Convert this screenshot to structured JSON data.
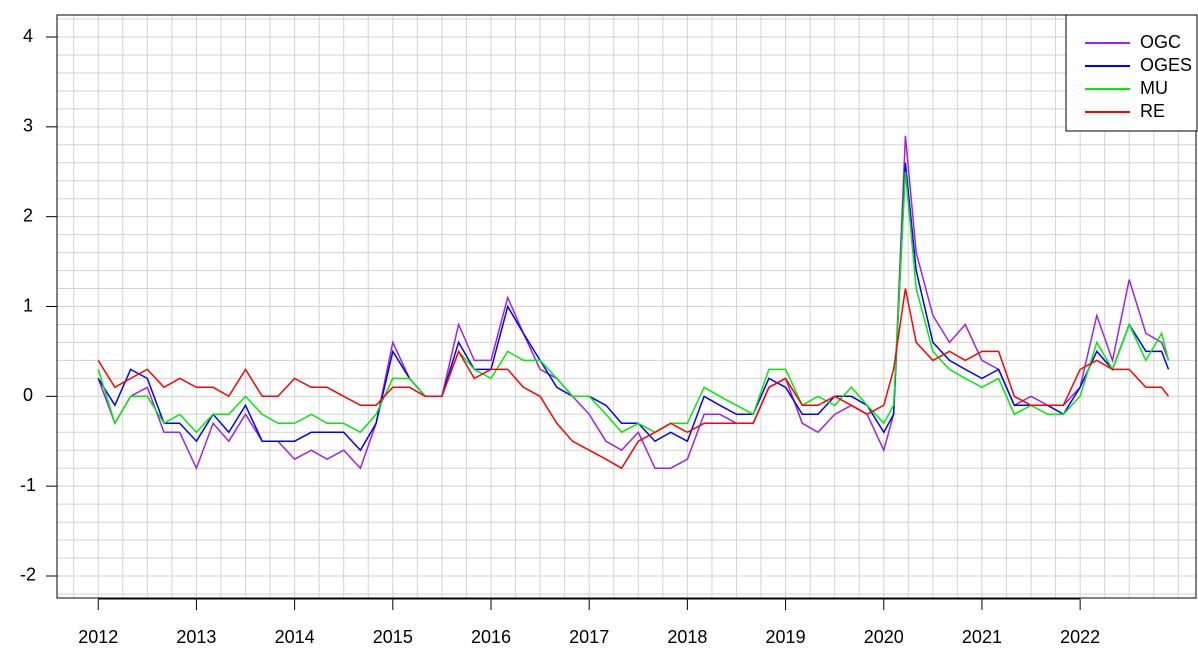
{
  "chart_data": {
    "type": "line",
    "x": [
      2012.0,
      2012.17,
      2012.33,
      2012.5,
      2012.67,
      2012.83,
      2013.0,
      2013.17,
      2013.33,
      2013.5,
      2013.67,
      2013.83,
      2014.0,
      2014.17,
      2014.33,
      2014.5,
      2014.67,
      2014.83,
      2015.0,
      2015.17,
      2015.33,
      2015.5,
      2015.67,
      2015.83,
      2016.0,
      2016.17,
      2016.33,
      2016.5,
      2016.67,
      2016.83,
      2017.0,
      2017.17,
      2017.33,
      2017.5,
      2017.67,
      2017.83,
      2018.0,
      2018.17,
      2018.33,
      2018.5,
      2018.67,
      2018.83,
      2019.0,
      2019.17,
      2019.33,
      2019.5,
      2019.67,
      2019.83,
      2020.0,
      2020.1,
      2020.22,
      2020.33,
      2020.5,
      2020.67,
      2020.83,
      2021.0,
      2021.17,
      2021.33,
      2021.5,
      2021.67,
      2021.83,
      2022.0,
      2022.17,
      2022.33,
      2022.5,
      2022.67,
      2022.83,
      2022.9
    ],
    "series": [
      {
        "name": "OGC",
        "color": "#a020f0",
        "values": [
          0.2,
          -0.3,
          0.0,
          0.1,
          -0.4,
          -0.4,
          -0.8,
          -0.3,
          -0.5,
          -0.2,
          -0.5,
          -0.5,
          -0.7,
          -0.6,
          -0.7,
          -0.6,
          -0.8,
          -0.3,
          0.6,
          0.2,
          0.0,
          0.0,
          0.8,
          0.4,
          0.4,
          1.1,
          0.7,
          0.3,
          0.2,
          0.0,
          -0.2,
          -0.5,
          -0.6,
          -0.4,
          -0.8,
          -0.8,
          -0.7,
          -0.2,
          -0.2,
          -0.3,
          -0.3,
          0.1,
          0.2,
          -0.3,
          -0.4,
          -0.2,
          -0.1,
          -0.2,
          -0.6,
          -0.2,
          2.9,
          1.6,
          0.9,
          0.6,
          0.8,
          0.4,
          0.3,
          -0.1,
          0.0,
          -0.1,
          -0.1,
          0.1,
          0.9,
          0.4,
          1.3,
          0.7,
          0.6,
          0.4
        ]
      },
      {
        "name": "OGES",
        "color": "#0000ff",
        "values": [
          0.2,
          -0.1,
          0.3,
          0.2,
          -0.3,
          -0.3,
          -0.5,
          -0.2,
          -0.4,
          -0.1,
          -0.5,
          -0.5,
          -0.5,
          -0.4,
          -0.4,
          -0.4,
          -0.6,
          -0.3,
          0.5,
          0.2,
          0.0,
          0.0,
          0.6,
          0.3,
          0.3,
          1.0,
          0.7,
          0.4,
          0.1,
          0.0,
          0.0,
          -0.1,
          -0.3,
          -0.3,
          -0.5,
          -0.4,
          -0.5,
          0.0,
          -0.1,
          -0.2,
          -0.2,
          0.2,
          0.1,
          -0.2,
          -0.2,
          0.0,
          0.0,
          -0.1,
          -0.4,
          -0.2,
          2.6,
          1.4,
          0.6,
          0.4,
          0.3,
          0.2,
          0.3,
          -0.1,
          -0.1,
          -0.1,
          -0.2,
          0.1,
          0.5,
          0.3,
          0.8,
          0.5,
          0.5,
          0.3
        ]
      },
      {
        "name": "MU",
        "color": "#00ee00",
        "values": [
          0.3,
          -0.3,
          0.0,
          0.0,
          -0.3,
          -0.2,
          -0.4,
          -0.2,
          -0.2,
          0.0,
          -0.2,
          -0.3,
          -0.3,
          -0.2,
          -0.3,
          -0.3,
          -0.4,
          -0.2,
          0.2,
          0.2,
          0.0,
          0.0,
          0.5,
          0.3,
          0.2,
          0.5,
          0.4,
          0.4,
          0.2,
          0.0,
          0.0,
          -0.2,
          -0.4,
          -0.3,
          -0.4,
          -0.3,
          -0.3,
          0.1,
          0.0,
          -0.1,
          -0.2,
          0.3,
          0.3,
          -0.1,
          0.0,
          -0.1,
          0.1,
          -0.1,
          -0.3,
          -0.1,
          2.5,
          1.2,
          0.5,
          0.3,
          0.2,
          0.1,
          0.2,
          -0.2,
          -0.1,
          -0.2,
          -0.2,
          0.0,
          0.6,
          0.3,
          0.8,
          0.4,
          0.7,
          0.4
        ]
      },
      {
        "name": "RE",
        "color": "#ff0000",
        "values": [
          0.4,
          0.1,
          0.2,
          0.3,
          0.1,
          0.2,
          0.1,
          0.1,
          0.0,
          0.3,
          0.0,
          0.0,
          0.2,
          0.1,
          0.1,
          0.0,
          -0.1,
          -0.1,
          0.1,
          0.1,
          0.0,
          0.0,
          0.5,
          0.2,
          0.3,
          0.3,
          0.1,
          0.0,
          -0.3,
          -0.5,
          -0.6,
          -0.7,
          -0.8,
          -0.5,
          -0.4,
          -0.3,
          -0.4,
          -0.3,
          -0.3,
          -0.3,
          -0.3,
          0.1,
          0.2,
          -0.1,
          -0.1,
          0.0,
          -0.1,
          -0.2,
          -0.1,
          0.3,
          1.2,
          0.6,
          0.4,
          0.5,
          0.4,
          0.5,
          0.5,
          0.0,
          -0.1,
          -0.1,
          -0.1,
          0.3,
          0.4,
          0.3,
          0.3,
          0.1,
          0.1,
          0.0
        ]
      }
    ],
    "xlim": [
      2011.58,
      2023.18
    ],
    "ylim": [
      -2.245,
      4.245
    ],
    "xticks": [
      2012,
      2013,
      2014,
      2015,
      2016,
      2017,
      2018,
      2019,
      2020,
      2021,
      2022
    ],
    "yticks": [
      -2,
      -1,
      0,
      1,
      2,
      3,
      4
    ],
    "grid": true,
    "grid_step": {
      "x": 0.25,
      "y": 0.2
    },
    "legend": "top-right"
  }
}
